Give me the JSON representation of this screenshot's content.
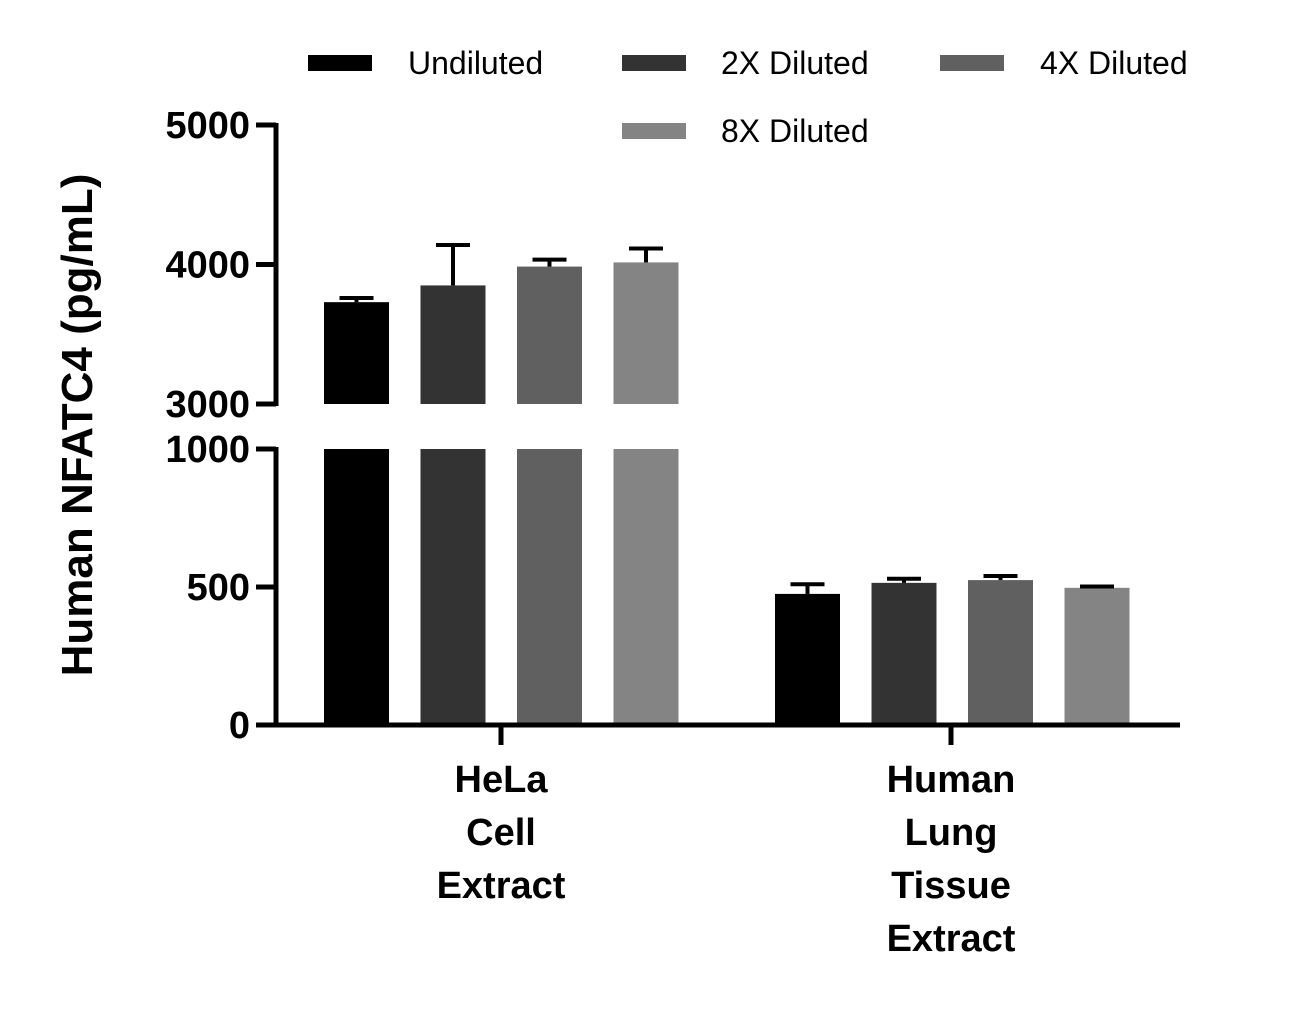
{
  "chart_data": {
    "type": "bar",
    "ylabel": "Human NFATC4 (pg/mL)",
    "categories": [
      [
        "HeLa",
        "Cell",
        "Extract"
      ],
      [
        "Human",
        "Lung",
        "Tissue",
        "Extract"
      ]
    ],
    "series": [
      {
        "name": "Undiluted",
        "color": "#000000",
        "values": [
          3730,
          475
        ],
        "errors": [
          30,
          35
        ]
      },
      {
        "name": "2X Diluted",
        "color": "#333333",
        "values": [
          3850,
          515
        ],
        "errors": [
          290,
          15
        ]
      },
      {
        "name": "4X Diluted",
        "color": "#606060",
        "values": [
          3985,
          525
        ],
        "errors": [
          50,
          15
        ]
      },
      {
        "name": "8X Diluted",
        "color": "#848484",
        "values": [
          4015,
          497
        ],
        "errors": [
          100,
          5
        ]
      }
    ],
    "y_axis_segments": [
      {
        "range": [
          0,
          1000
        ],
        "ticks": [
          0,
          500,
          1000
        ]
      },
      {
        "range": [
          3000,
          5000
        ],
        "ticks": [
          3000,
          4000,
          5000
        ]
      }
    ],
    "y_break": [
      1000,
      3000
    ],
    "legend_position": "top",
    "grid": false
  }
}
